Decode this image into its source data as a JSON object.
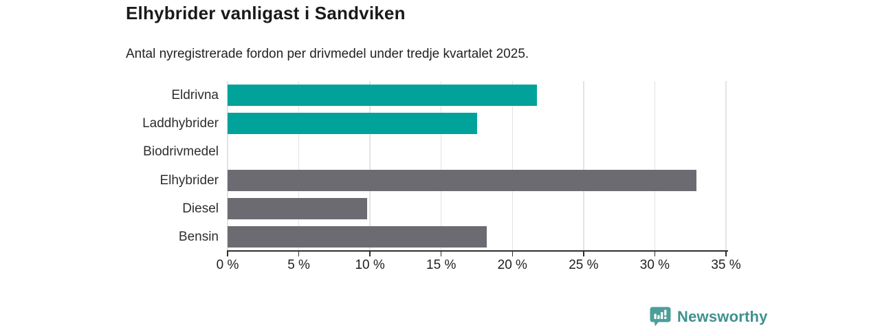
{
  "header": {
    "title": "Elhybrider vanligast i Sandviken",
    "subtitle": "Antal nyregistrerade fordon per drivmedel under tredje kvartalet 2025."
  },
  "chart_data": {
    "type": "bar",
    "orientation": "horizontal",
    "title": "Elhybrider vanligast i Sandviken",
    "subtitle": "Antal nyregistrerade fordon per drivmedel under tredje kvartalet 2025.",
    "categories": [
      "Eldrivna",
      "Laddhybrider",
      "Biodrivmedel",
      "Elhybrider",
      "Diesel",
      "Bensin"
    ],
    "values": [
      21.7,
      17.5,
      0,
      32.9,
      9.8,
      18.2
    ],
    "bar_colors": [
      "#00a29a",
      "#00a29a",
      "#00a29a",
      "#6b6b71",
      "#6b6b71",
      "#6b6b71"
    ],
    "unit": "%",
    "xlim": [
      0,
      35
    ],
    "x_ticks": [
      0,
      5,
      10,
      15,
      20,
      25,
      30,
      35
    ],
    "x_tick_labels": [
      "0 %",
      "5 %",
      "10 %",
      "15 %",
      "20 %",
      "25 %",
      "30 %",
      "35 %"
    ],
    "grid": "vertical-gridlines",
    "legend": "none"
  },
  "colors": {
    "accent_teal": "#00a29a",
    "neutral_gray": "#6b6b71",
    "axis": "#2e2e2e",
    "gridline": "#e3e3e3"
  },
  "footer": {
    "brand": "Newsworthy",
    "brand_text_color": "#3f918e",
    "brand_logo_color": "#4d9e99"
  }
}
